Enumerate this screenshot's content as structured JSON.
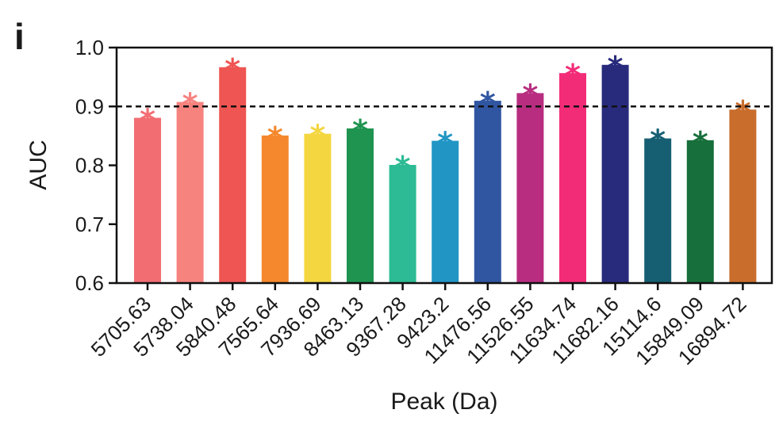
{
  "chart_data": {
    "type": "bar",
    "panel_label": "i",
    "xlabel": "Peak (Da)",
    "ylabel": "AUC",
    "ylim": [
      0.6,
      1.0
    ],
    "yticks": [
      "0.6",
      "0.7",
      "0.8",
      "0.9",
      "1.0"
    ],
    "reference_line": 0.9,
    "significance_marker": "*",
    "categories": [
      "5705.63",
      "5738.04",
      "5840.48",
      "7565.64",
      "7936.69",
      "8463.13",
      "9367.28",
      "9423.2",
      "11476.56",
      "11526.55",
      "11634.74",
      "11682.16",
      "15114.6",
      "15849.09",
      "16894.72"
    ],
    "values": [
      0.882,
      0.909,
      0.968,
      0.852,
      0.855,
      0.864,
      0.802,
      0.843,
      0.911,
      0.924,
      0.958,
      0.972,
      0.847,
      0.844,
      0.896
    ],
    "colors": [
      "#f26d72",
      "#f7837f",
      "#ef5552",
      "#f5882c",
      "#f4d640",
      "#1f9450",
      "#2cbb94",
      "#2196c4",
      "#3056a2",
      "#b82d80",
      "#f32c78",
      "#282b7c",
      "#165f73",
      "#176f3b",
      "#c96d2d"
    ]
  }
}
